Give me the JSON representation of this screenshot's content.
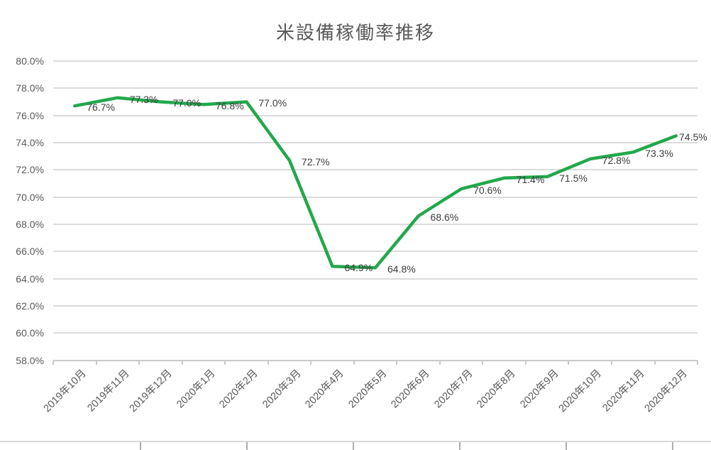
{
  "chart_data": {
    "type": "line",
    "title": "米設備稼働率推移",
    "categories": [
      "2019年10月",
      "2019年11月",
      "2019年12月",
      "2020年1月",
      "2020年2月",
      "2020年3月",
      "2020年4月",
      "2020年5月",
      "2020年6月",
      "2020年7月",
      "2020年8月",
      "2020年9月",
      "2020年10月",
      "2020年11月",
      "2020年12月"
    ],
    "values": [
      76.7,
      77.3,
      77.0,
      76.8,
      77.0,
      72.7,
      64.9,
      64.8,
      68.6,
      70.6,
      71.4,
      71.5,
      72.8,
      73.3,
      74.5
    ],
    "data_labels": [
      "76.7%",
      "77.3%",
      "77.0%",
      "76.8%",
      "77.0%",
      "72.7%",
      "64.9%",
      "64.8%",
      "68.6%",
      "70.6%",
      "71.4%",
      "71.5%",
      "72.8%",
      "73.3%",
      "74.5%"
    ],
    "y_tick_labels": [
      "80.0%",
      "78.0%",
      "76.0%",
      "74.0%",
      "72.0%",
      "70.0%",
      "68.0%",
      "66.0%",
      "64.0%",
      "62.0%",
      "60.0%",
      "58.0%"
    ],
    "ylim": [
      58,
      80
    ],
    "y_step": 2,
    "xlabel": "",
    "ylabel": "",
    "legend": "none",
    "grid": true,
    "line_color": "#22A84C",
    "title_color": "#595959",
    "axis_label_color": "#595959",
    "data_label_color": "#3B3B3B",
    "gridline_color": "#DBDBDB"
  }
}
